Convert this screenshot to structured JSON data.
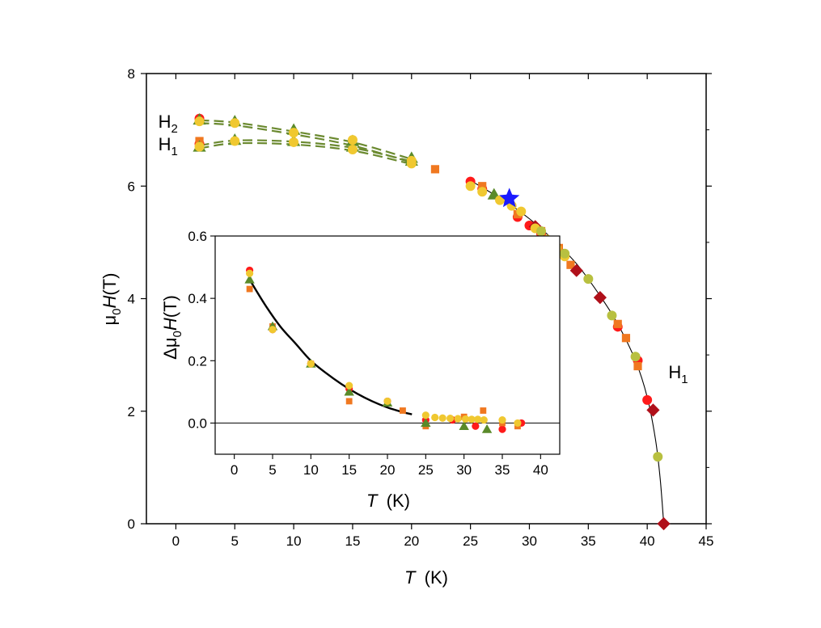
{
  "colors": {
    "red": "#ff1a1a",
    "orange": "#f07820",
    "darkred": "#b0101a",
    "olive": "#5a8a2a",
    "yellow": "#f0c830",
    "lime": "#b8c040",
    "blue": "#1a1aff",
    "dash": "#6b8a30"
  },
  "chart_data": [
    {
      "id": "main",
      "type": "scatter",
      "xlabel_italic": "T",
      "xlabel_unit": "(K)",
      "ylabel_prefix": "μ",
      "ylabel_sub": "0",
      "ylabel_italic": "H",
      "ylabel_unit": "(T)",
      "xlim": [
        -2.5,
        45
      ],
      "ylim": [
        0,
        8
      ],
      "xticks": [
        0,
        5,
        10,
        15,
        20,
        25,
        30,
        35,
        40,
        45
      ],
      "yticks": [
        0,
        2,
        4,
        6,
        8
      ],
      "annotations": [
        {
          "label": "H",
          "sub": "2",
          "x": -1.5,
          "y": 7.15
        },
        {
          "label": "H",
          "sub": "1",
          "x": -1.5,
          "y": 6.75
        },
        {
          "label": "H",
          "sub": "1",
          "x": 41.8,
          "y": 2.7
        }
      ],
      "series": [
        {
          "name": "red-circle",
          "marker": "circle",
          "color": "red",
          "points": [
            [
              2,
              7.2
            ],
            [
              2,
              6.75
            ],
            [
              25,
              6.08
            ],
            [
              26,
              5.95
            ],
            [
              29,
              5.45
            ],
            [
              30,
              5.3
            ],
            [
              31,
              5.15
            ],
            [
              37.5,
              3.5
            ],
            [
              39.2,
              2.9
            ],
            [
              40,
              2.2
            ]
          ]
        },
        {
          "name": "orange-square",
          "marker": "square",
          "color": "orange",
          "points": [
            [
              22,
              6.3
            ],
            [
              26,
              6.0
            ],
            [
              29,
              5.5
            ],
            [
              31,
              5.2
            ],
            [
              32.5,
              4.9
            ],
            [
              33.5,
              4.6
            ],
            [
              37.5,
              3.55
            ],
            [
              38.2,
              3.3
            ],
            [
              39.2,
              2.8
            ],
            [
              2,
              6.8
            ]
          ]
        },
        {
          "name": "darkred-diamond",
          "marker": "diamond",
          "color": "darkred",
          "points": [
            [
              30.5,
              5.28
            ],
            [
              32,
              5.0
            ],
            [
              34,
              4.5
            ],
            [
              36,
              4.02
            ],
            [
              40.5,
              2.02
            ],
            [
              41.4,
              0.0
            ]
          ]
        },
        {
          "name": "olive-triangle",
          "marker": "triangle",
          "color": "olive",
          "points": [
            [
              2,
              7.18
            ],
            [
              5,
              7.15
            ],
            [
              10,
              7.0
            ],
            [
              15,
              6.8
            ],
            [
              20,
              6.5
            ],
            [
              2,
              6.7
            ],
            [
              5,
              6.82
            ],
            [
              10,
              6.8
            ],
            [
              15,
              6.7
            ],
            [
              20,
              6.45
            ],
            [
              27,
              5.85
            ]
          ]
        },
        {
          "name": "yellow-circle",
          "marker": "circle",
          "color": "yellow",
          "points": [
            [
              2,
              7.15
            ],
            [
              5,
              7.12
            ],
            [
              10,
              6.95
            ],
            [
              15,
              6.82
            ],
            [
              20,
              6.45
            ],
            [
              2,
              6.7
            ],
            [
              5,
              6.8
            ],
            [
              10,
              6.78
            ],
            [
              15,
              6.65
            ],
            [
              20,
              6.4
            ],
            [
              25,
              6.0
            ],
            [
              26,
              5.9
            ],
            [
              27.5,
              5.75
            ],
            [
              28.5,
              5.65
            ],
            [
              29.3,
              5.55
            ],
            [
              30.5,
              5.25
            ],
            [
              31.5,
              5.05
            ],
            [
              32.3,
              4.9
            ],
            [
              33,
              4.75
            ]
          ]
        },
        {
          "name": "lime-hexagon",
          "marker": "circle",
          "color": "lime",
          "points": [
            [
              31,
              5.2
            ],
            [
              33,
              4.8
            ],
            [
              35,
              4.35
            ],
            [
              37,
              3.7
            ],
            [
              39,
              2.97
            ],
            [
              40.9,
              1.19
            ]
          ]
        },
        {
          "name": "blue-star",
          "marker": "star",
          "color": "blue",
          "points": [
            [
              28.3,
              5.78
            ]
          ]
        }
      ],
      "dashed_lines": [
        {
          "name": "H2-line",
          "points": [
            [
              2,
              7.17
            ],
            [
              5,
              7.13
            ],
            [
              10,
              6.97
            ],
            [
              15,
              6.78
            ],
            [
              20,
              6.48
            ]
          ]
        },
        {
          "name": "H2-line-b",
          "points": [
            [
              2,
              7.12
            ],
            [
              5,
              7.08
            ],
            [
              10,
              6.92
            ],
            [
              15,
              6.72
            ],
            [
              20,
              6.42
            ]
          ]
        },
        {
          "name": "H1-line",
          "points": [
            [
              2,
              6.72
            ],
            [
              5,
              6.81
            ],
            [
              10,
              6.79
            ],
            [
              15,
              6.68
            ],
            [
              20,
              6.44
            ]
          ]
        },
        {
          "name": "H1-line-b",
          "points": [
            [
              2,
              6.67
            ],
            [
              5,
              6.76
            ],
            [
              10,
              6.74
            ],
            [
              15,
              6.63
            ],
            [
              20,
              6.39
            ]
          ]
        }
      ],
      "fit_curve": {
        "name": "H1-fit",
        "points": [
          [
            25,
            6.1
          ],
          [
            28,
            5.72
          ],
          [
            30,
            5.42
          ],
          [
            32,
            5.05
          ],
          [
            34,
            4.62
          ],
          [
            36,
            4.05
          ],
          [
            37.5,
            3.55
          ],
          [
            39,
            2.9
          ],
          [
            40,
            2.25
          ],
          [
            40.7,
            1.5
          ],
          [
            41.1,
            0.8
          ],
          [
            41.4,
            0.0
          ]
        ]
      }
    },
    {
      "id": "inset",
      "type": "scatter",
      "xlabel_italic": "T",
      "xlabel_unit": "(K)",
      "ylabel_prefix": "Δμ",
      "ylabel_sub": "0",
      "ylabel_italic": "H",
      "ylabel_unit": "(T)",
      "xlim": [
        -2.5,
        42.5
      ],
      "ylim": [
        -0.1,
        0.6
      ],
      "xticks": [
        0,
        5,
        10,
        15,
        20,
        25,
        30,
        35,
        40
      ],
      "ytick_values": [
        0.0,
        0.2,
        0.4,
        0.6
      ],
      "ytick_labels": [
        "0.0",
        "0.2",
        "0.4",
        "0.6"
      ],
      "zero_line": 0,
      "fit_curve": {
        "name": "inset-fit",
        "points": [
          [
            2,
            0.46
          ],
          [
            4,
            0.38
          ],
          [
            6,
            0.31
          ],
          [
            8,
            0.255
          ],
          [
            10,
            0.2
          ],
          [
            12,
            0.16
          ],
          [
            14,
            0.125
          ],
          [
            16,
            0.095
          ],
          [
            18,
            0.07
          ],
          [
            20,
            0.05
          ],
          [
            22,
            0.035
          ],
          [
            23.2,
            0.028
          ]
        ]
      },
      "series": [
        {
          "name": "red-circle",
          "marker": "circle",
          "color": "red",
          "points": [
            [
              2,
              0.49
            ],
            [
              5,
              0.3
            ],
            [
              10,
              0.19
            ],
            [
              15,
              0.11
            ],
            [
              20,
              0.07
            ],
            [
              25,
              0.01
            ],
            [
              28.5,
              0.01
            ],
            [
              31.5,
              -0.01
            ],
            [
              35,
              -0.02
            ],
            [
              37.5,
              0.0
            ]
          ]
        },
        {
          "name": "orange-square",
          "marker": "square",
          "color": "orange",
          "points": [
            [
              2,
              0.43
            ],
            [
              5,
              0.31
            ],
            [
              10,
              0.19
            ],
            [
              15,
              0.07
            ],
            [
              22,
              0.04
            ],
            [
              25,
              -0.01
            ],
            [
              30,
              0.02
            ],
            [
              32.5,
              0.04
            ],
            [
              35,
              0.0
            ],
            [
              37,
              -0.01
            ]
          ]
        },
        {
          "name": "olive-triangle",
          "marker": "triangle",
          "color": "olive",
          "points": [
            [
              2,
              0.46
            ],
            [
              5,
              0.31
            ],
            [
              10,
              0.19
            ],
            [
              15,
              0.1
            ],
            [
              20,
              0.065
            ],
            [
              25,
              0.0
            ],
            [
              30,
              -0.01
            ],
            [
              33,
              -0.02
            ]
          ]
        },
        {
          "name": "yellow-circle",
          "marker": "circle",
          "color": "yellow",
          "points": [
            [
              2,
              0.48
            ],
            [
              5,
              0.3
            ],
            [
              10,
              0.19
            ],
            [
              15,
              0.12
            ],
            [
              20,
              0.07
            ],
            [
              25,
              0.025
            ],
            [
              26.2,
              0.018
            ],
            [
              27.2,
              0.016
            ],
            [
              28.2,
              0.015
            ],
            [
              29.2,
              0.014
            ],
            [
              30.2,
              0.013
            ],
            [
              31,
              0.012
            ],
            [
              31.8,
              0.012
            ],
            [
              32.6,
              0.01
            ],
            [
              35,
              0.01
            ],
            [
              37,
              0.0
            ]
          ]
        }
      ]
    }
  ]
}
